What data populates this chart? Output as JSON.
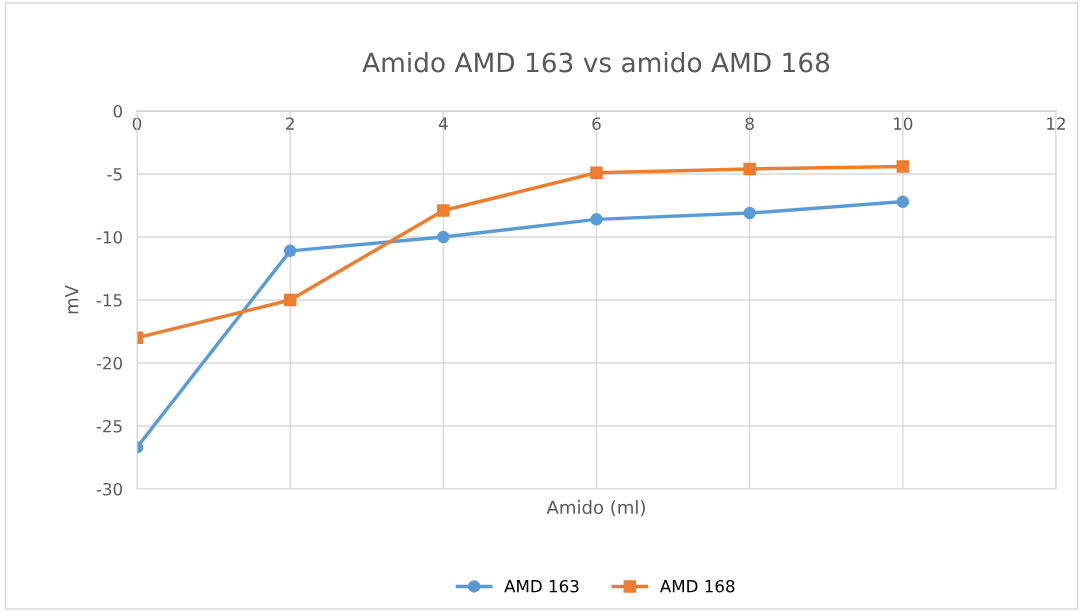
{
  "chart_data": {
    "type": "line",
    "title": "Amido AMD 163 vs amido AMD 168",
    "xlabel": "Amido (ml)",
    "ylabel": "mV",
    "x": [
      0,
      2,
      4,
      6,
      8,
      10
    ],
    "series": [
      {
        "name": "AMD 163",
        "color": "#5b9bd5",
        "marker": "circle",
        "values": [
          -26.7,
          -11.1,
          -10.0,
          -8.6,
          -8.1,
          -7.2
        ]
      },
      {
        "name": "AMD 168",
        "color": "#ed7d31",
        "marker": "square",
        "values": [
          -18.0,
          -15.0,
          -7.9,
          -4.9,
          -4.6,
          -4.4
        ]
      }
    ],
    "xlim": [
      0,
      12
    ],
    "xticks": [
      0,
      2,
      4,
      6,
      8,
      10,
      12
    ],
    "ylim": [
      -30,
      0
    ],
    "yticks": [
      -30,
      -25,
      -20,
      -15,
      -10,
      -5,
      0
    ],
    "grid": true,
    "legend": "bottom",
    "line_style": "solid"
  }
}
